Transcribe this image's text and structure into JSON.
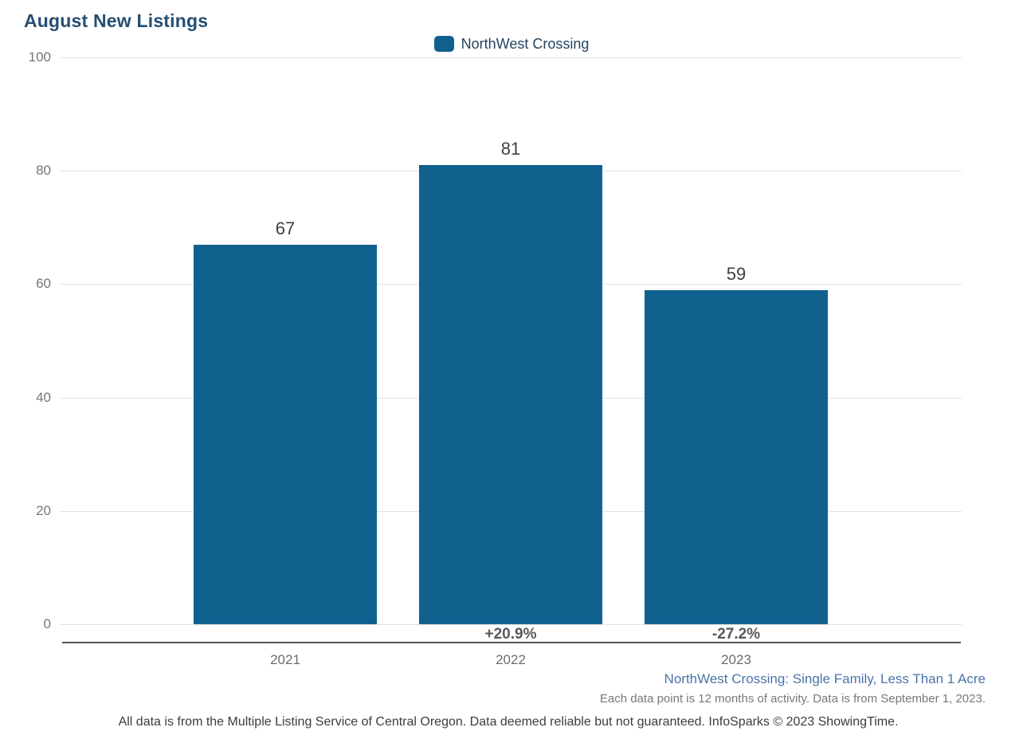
{
  "legend": {
    "label": "NorthWest Crossing"
  },
  "chart_data": {
    "type": "bar",
    "title": "August New Listings",
    "categories": [
      "2021",
      "2022",
      "2023"
    ],
    "series": [
      {
        "name": "NorthWest Crossing",
        "values": [
          67,
          81,
          59
        ]
      }
    ],
    "value_labels": [
      "67",
      "81",
      "59"
    ],
    "pct_change_labels": [
      "",
      "+20.9%",
      "-27.2%"
    ],
    "xlabel": "",
    "ylabel": "",
    "ylim": [
      0,
      100
    ],
    "yticks": [
      0,
      20,
      40,
      60,
      80,
      100
    ],
    "grid": true,
    "legend_position": "top-center",
    "bar_color": "#11618F"
  },
  "footnotes": {
    "segment": "NorthWest Crossing: Single Family, Less Than 1 Acre",
    "data_note": "Each data point is 12 months of activity. Data is from September 1, 2023.",
    "disclaimer": "All data is from the Multiple Listing Service of Central Oregon. Data deemed reliable but not guaranteed. InfoSparks © 2023 ShowingTime."
  }
}
